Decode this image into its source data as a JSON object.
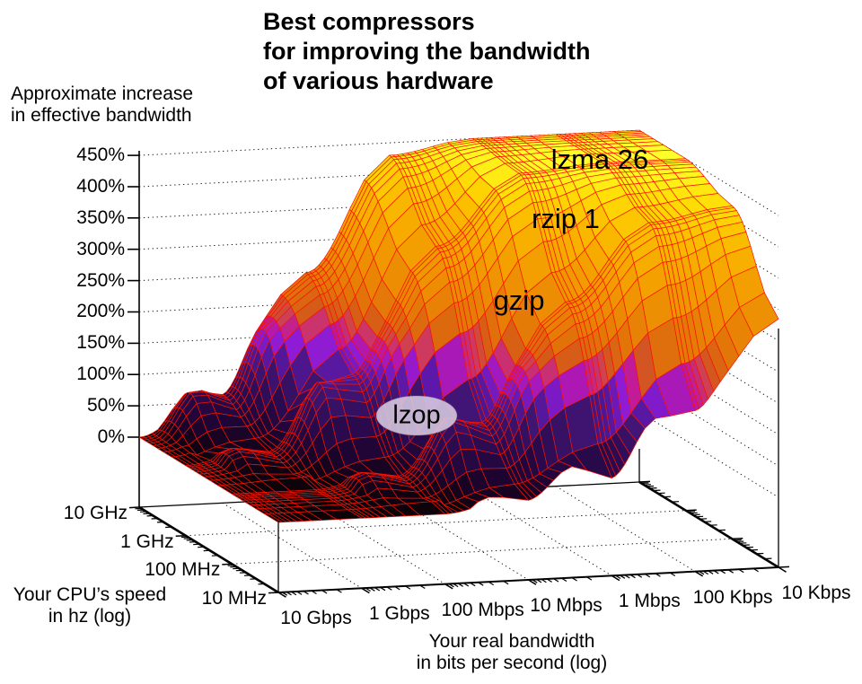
{
  "title": {
    "lines": [
      "Best compressors",
      "for improving the bandwidth",
      "of various hardware"
    ]
  },
  "z_axis": {
    "title_lines": [
      "Approximate increase",
      "in effective bandwidth"
    ],
    "ticks": [
      "450%",
      "400%",
      "350%",
      "300%",
      "250%",
      "200%",
      "150%",
      "100%",
      "50%",
      "0%"
    ]
  },
  "cpu_axis": {
    "title_lines": [
      "Your CPU’s speed",
      "in hz (log)"
    ],
    "ticks": [
      "10 GHz",
      "1 GHz",
      "100 MHz",
      "10 MHz"
    ]
  },
  "bw_axis": {
    "title_lines": [
      "Your real bandwidth",
      "in bits per second (log)"
    ],
    "ticks": [
      "10 Gbps",
      "1 Gbps",
      "100 Mbps",
      "10 Mbps",
      "1 Mbps",
      "100 Kbps",
      "10 Kbps"
    ]
  },
  "annotations": {
    "lzma": "lzma 26",
    "rzip": "rzip 1",
    "gzip": "gzip",
    "lzop": "lzop"
  },
  "chart_data": {
    "type": "surface",
    "title": "Best compressors for improving the bandwidth of various hardware",
    "x_axis": {
      "label": "Your real bandwidth in bits per second (log)",
      "scale": "log",
      "ticks": [
        "10 Gbps",
        "1 Gbps",
        "100 Mbps",
        "10 Mbps",
        "1 Mbps",
        "100 Kbps",
        "10 Kbps"
      ]
    },
    "y_axis": {
      "label": "Your CPU’s speed in hz (log)",
      "scale": "log",
      "ticks": [
        "10 GHz",
        "1 GHz",
        "100 MHz",
        "10 MHz"
      ]
    },
    "z_axis": {
      "label": "Approximate increase in effective bandwidth",
      "unit": "%",
      "range": [
        0,
        450
      ],
      "tick_step": 50
    },
    "series": [
      {
        "cpu": "10 GHz",
        "values": [
          0,
          90,
          250,
          430,
          450,
          450,
          450
        ]
      },
      {
        "cpu": "1 GHz",
        "values": [
          0,
          30,
          150,
          330,
          440,
          450,
          450
        ]
      },
      {
        "cpu": "100 MHz",
        "values": [
          0,
          0,
          30,
          120,
          280,
          400,
          420
        ]
      },
      {
        "cpu": "10 MHz",
        "values": [
          0,
          0,
          0,
          30,
          70,
          160,
          285
        ]
      }
    ],
    "region_labels": [
      "lzma 26",
      "rzip 1",
      "gzip",
      "lzop"
    ],
    "style": {
      "wireframe": "#f81200",
      "grid_color": "#161616",
      "bump_amp": 75,
      "lzop_ellipse_fill": "#d7cbe2",
      "palette": [
        [
          0,
          "#0d0208"
        ],
        [
          35,
          "#1d0430"
        ],
        [
          80,
          "#2e0c55"
        ],
        [
          115,
          "#401573"
        ],
        [
          138,
          "#5c18a8"
        ],
        [
          158,
          "#8d1bd6"
        ],
        [
          176,
          "#bf17a0"
        ],
        [
          192,
          "#cf3f55"
        ],
        [
          205,
          "#d55a18"
        ],
        [
          235,
          "#e37508"
        ],
        [
          275,
          "#ec8b04"
        ],
        [
          330,
          "#f5a300"
        ],
        [
          385,
          "#fbbf00"
        ],
        [
          420,
          "#ffdf06"
        ],
        [
          450,
          "#ffff2a"
        ]
      ]
    }
  }
}
